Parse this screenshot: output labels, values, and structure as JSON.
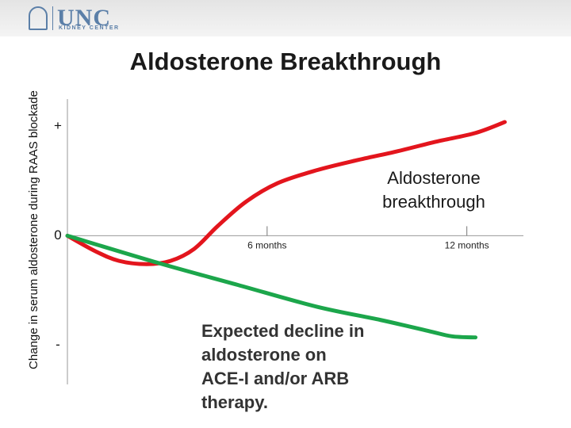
{
  "header": {
    "logo": "UNC",
    "logo_subtitle": "KIDNEY CENTER"
  },
  "chart_data": {
    "type": "line",
    "title": "Aldosterone Breakthrough",
    "y_label": "Change in serum aldosterone during RAAS blockade",
    "xlim": [
      0,
      13.7
    ],
    "ylim": [
      -1.36,
      1.25
    ],
    "xticks": [
      {
        "value": 6,
        "label": "6 months"
      },
      {
        "value": 12,
        "label": "12 months"
      }
    ],
    "yticks": [
      {
        "value": 1,
        "label": "+"
      },
      {
        "value": 0,
        "label": "0"
      },
      {
        "value": -1,
        "label": "-"
      }
    ],
    "series": [
      {
        "name": "Aldosterone breakthrough",
        "color": "#e3151d",
        "x": [
          0,
          0.83,
          1.55,
          2.38,
          3.1,
          3.81,
          4.52,
          5.36,
          6.31,
          7.5,
          8.69,
          9.88,
          11.07,
          12.26,
          13.14
        ],
        "values": [
          0,
          -0.14,
          -0.23,
          -0.26,
          -0.23,
          -0.12,
          0.09,
          0.31,
          0.48,
          0.6,
          0.69,
          0.77,
          0.86,
          0.94,
          1.04
        ]
      },
      {
        "name": "Expected decline in aldosterone on ACE-I and/or ARB therapy.",
        "color": "#1ca64b",
        "x": [
          0,
          2.74,
          5.12,
          7.5,
          9.4,
          10.83,
          11.55,
          12.26
        ],
        "values": [
          0,
          -0.25,
          -0.45,
          -0.65,
          -0.77,
          -0.87,
          -0.92,
          -0.93
        ]
      }
    ]
  }
}
